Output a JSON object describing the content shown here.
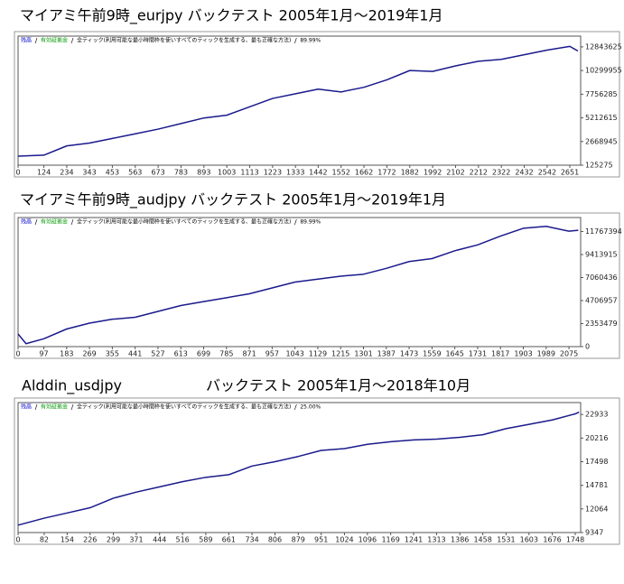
{
  "chart_data": [
    {
      "type": "line",
      "title": "マイアミ午前9時_eurjpy バックテスト 2005年1月～2019年1月",
      "legend": [
        "残高",
        "有効証拠金"
      ],
      "legend_colors": [
        "#0000cc",
        "#009900"
      ],
      "model": "全ティック(利用可能な最小時間枠を使いすべてのティックを生成する、最も正確な方法)",
      "quality": "89.99%",
      "xlim": [
        0,
        2703
      ],
      "xticks": [
        0,
        124,
        234,
        343,
        453,
        563,
        673,
        783,
        893,
        1003,
        1113,
        1223,
        1333,
        1442,
        1552,
        1662,
        1772,
        1882,
        1992,
        2102,
        2212,
        2322,
        2432,
        2542,
        2651
      ],
      "ylim": [
        125275,
        14000000
      ],
      "yticks": [
        125275,
        2668945,
        5212615,
        7756285,
        10299955,
        12843625
      ],
      "x": [
        0,
        124,
        234,
        343,
        453,
        563,
        673,
        783,
        893,
        1003,
        1113,
        1223,
        1333,
        1442,
        1552,
        1662,
        1772,
        1882,
        1992,
        2102,
        2212,
        2322,
        2432,
        2542,
        2651,
        2690
      ],
      "series": [
        {
          "name": "残高",
          "color": "#1a1a8c",
          "values": [
            1100000,
            1200000,
            2200000,
            2500000,
            3000000,
            3500000,
            4000000,
            4600000,
            5200000,
            5500000,
            6400000,
            7300000,
            7800000,
            8300000,
            8000000,
            8500000,
            9300000,
            10300000,
            10200000,
            10800000,
            11300000,
            11500000,
            12000000,
            12500000,
            12900000,
            12400000
          ]
        }
      ]
    },
    {
      "type": "line",
      "title": "マイアミ午前9時_audjpy バックテスト 2005年1月～2019年1月",
      "legend": [
        "残高",
        "有効証拠金"
      ],
      "legend_colors": [
        "#0000cc",
        "#009900"
      ],
      "model": "全ティック(利用可能な最小時間枠を使いすべてのティックを生成する、最も正確な方法)",
      "quality": "89.99%",
      "xlim": [
        0,
        2119
      ],
      "xticks": [
        0,
        97,
        183,
        269,
        355,
        441,
        527,
        613,
        699,
        785,
        871,
        957,
        1043,
        1129,
        1215,
        1301,
        1387,
        1473,
        1559,
        1645,
        1731,
        1817,
        1903,
        1989,
        2075
      ],
      "ylim": [
        0,
        13200000
      ],
      "yticks": [
        0,
        2353479,
        4706957,
        7060436,
        9413915,
        11767394
      ],
      "x": [
        0,
        30,
        97,
        183,
        269,
        355,
        441,
        527,
        613,
        699,
        785,
        871,
        957,
        1043,
        1129,
        1215,
        1301,
        1387,
        1473,
        1559,
        1645,
        1731,
        1817,
        1903,
        1989,
        2075,
        2110
      ],
      "series": [
        {
          "name": "残高",
          "color": "#1a1a8c",
          "values": [
            1300000,
            300000,
            800000,
            1800000,
            2400000,
            2800000,
            3000000,
            3600000,
            4200000,
            4600000,
            5000000,
            5400000,
            6000000,
            6600000,
            6900000,
            7200000,
            7400000,
            8000000,
            8700000,
            9000000,
            9800000,
            10400000,
            11300000,
            12100000,
            12300000,
            11800000,
            11900000
          ]
        }
      ]
    },
    {
      "type": "line",
      "title": "Alddin_usdjpy",
      "subtitle": "バックテスト 2005年1月～2018年10月",
      "legend": [
        "残高",
        "有効証拠金"
      ],
      "legend_colors": [
        "#0000cc",
        "#009900"
      ],
      "model": "全ティック(利用可能な最小時間枠を使いすべてのティックを生成する、最も正確な方法)",
      "quality": "25.00%",
      "xlim": [
        0,
        1765
      ],
      "xticks": [
        0,
        82,
        154,
        226,
        299,
        371,
        444,
        516,
        589,
        661,
        734,
        806,
        879,
        951,
        1024,
        1096,
        1169,
        1241,
        1313,
        1386,
        1458,
        1531,
        1603,
        1676,
        1748
      ],
      "ylim": [
        9347,
        24300
      ],
      "yticks": [
        9347,
        12064,
        14781,
        17498,
        20216,
        22933
      ],
      "x": [
        0,
        82,
        154,
        226,
        299,
        371,
        444,
        516,
        589,
        661,
        734,
        806,
        879,
        951,
        1024,
        1096,
        1169,
        1241,
        1313,
        1386,
        1458,
        1531,
        1603,
        1676,
        1748,
        1760
      ],
      "series": [
        {
          "name": "残高",
          "color": "#1a1a8c",
          "values": [
            10200,
            11000,
            11600,
            12200,
            13300,
            14000,
            14600,
            15200,
            15700,
            16000,
            17000,
            17500,
            18100,
            18800,
            19000,
            19500,
            19800,
            20000,
            20100,
            20300,
            20600,
            21300,
            21800,
            22300,
            23000,
            23200
          ]
        }
      ]
    }
  ]
}
